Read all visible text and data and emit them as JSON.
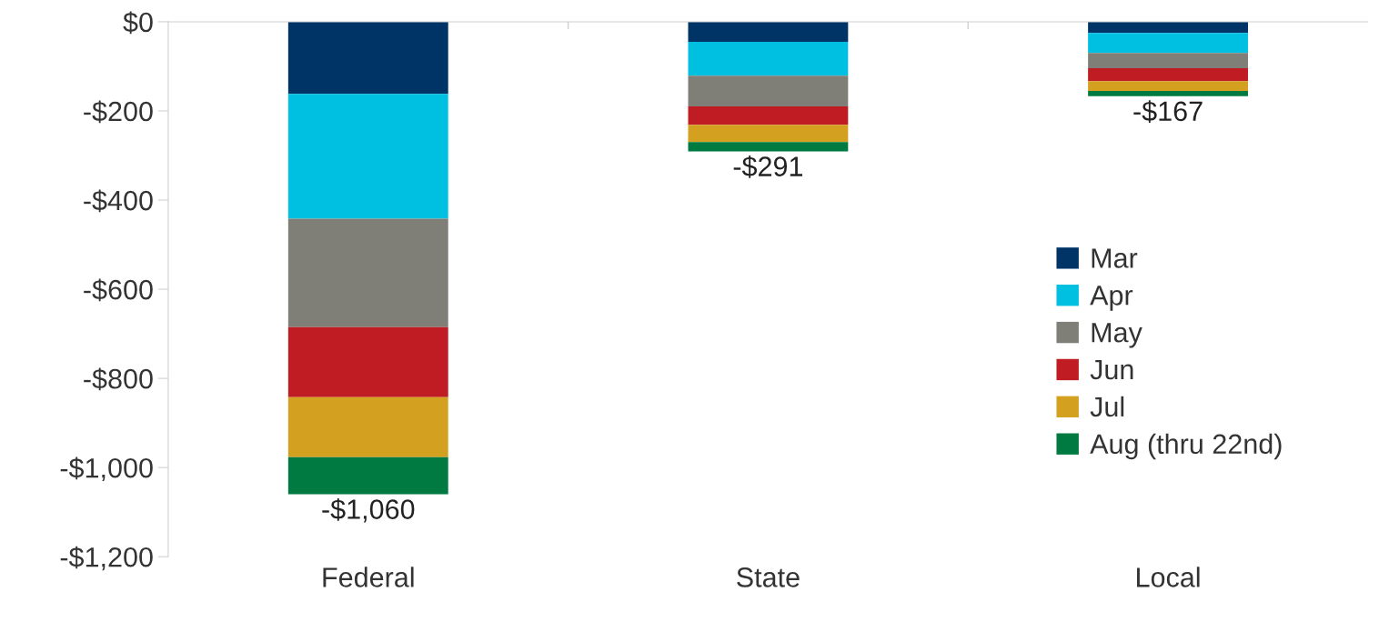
{
  "chart_data": {
    "type": "bar",
    "stacked": true,
    "categories": [
      "Federal",
      "State",
      "Local"
    ],
    "series": [
      {
        "name": "Mar",
        "color": "#003366",
        "values": [
          -162,
          -45,
          -25
        ]
      },
      {
        "name": "Apr",
        "color": "#00c0e2",
        "values": [
          -280,
          -76,
          -45
        ]
      },
      {
        "name": "May",
        "color": "#7f7f78",
        "values": [
          -243,
          -69,
          -34
        ]
      },
      {
        "name": "Jun",
        "color": "#c01c24",
        "values": [
          -157,
          -41,
          -29
        ]
      },
      {
        "name": "Jul",
        "color": "#d4a020",
        "values": [
          -135,
          -39,
          -22
        ]
      },
      {
        "name": "Aug (thru 22nd)",
        "color": "#007a40",
        "values": [
          -83,
          -21,
          -12
        ]
      }
    ],
    "totals": [
      "-$1,060",
      "-$291",
      "-$167"
    ],
    "ylim": [
      -1200,
      0
    ],
    "yticks": [
      {
        "value": 0,
        "label": "$0"
      },
      {
        "value": -200,
        "label": "-$200"
      },
      {
        "value": -400,
        "label": "-$400"
      },
      {
        "value": -600,
        "label": "-$600"
      },
      {
        "value": -800,
        "label": "-$800"
      },
      {
        "value": -1000,
        "label": "-$1,000"
      },
      {
        "value": -1200,
        "label": "-$1,200"
      }
    ],
    "grid": false,
    "legend": "right"
  }
}
